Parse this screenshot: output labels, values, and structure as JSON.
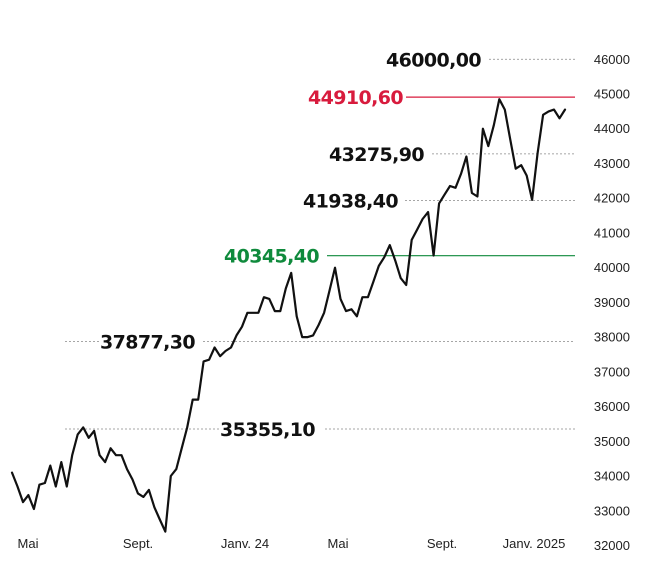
{
  "chart_data": {
    "type": "line",
    "title": "",
    "xlabel": "",
    "ylabel": "",
    "ylim": [
      32000,
      46600
    ],
    "y_axis": {
      "position": "right",
      "ticks": [
        32000,
        33000,
        34000,
        35000,
        36000,
        37000,
        38000,
        39000,
        40000,
        41000,
        42000,
        43000,
        44000,
        45000,
        46000
      ]
    },
    "x_ticks": [
      "Mai",
      "Sept.",
      "Janv. 24",
      "Mai",
      "Sept.",
      "Janv. 2025"
    ],
    "grid": false,
    "series": [
      {
        "color": "#111111",
        "values": [
          34100,
          33700,
          33250,
          33450,
          33050,
          33750,
          33800,
          34300,
          33700,
          34400,
          33700,
          34600,
          35200,
          35400,
          35100,
          35300,
          34600,
          34400,
          34800,
          34600,
          34600,
          34200,
          33900,
          33500,
          33400,
          33600,
          33100,
          32750,
          32400,
          34000,
          34200,
          34800,
          35400,
          36200,
          36200,
          37300,
          37350,
          37700,
          37450,
          37600,
          37700,
          38050,
          38300,
          38700,
          38700,
          38700,
          39150,
          39100,
          38750,
          38750,
          39400,
          39850,
          38600,
          38000,
          38000,
          38050,
          38350,
          38700,
          39350,
          40000,
          39100,
          38750,
          38800,
          38600,
          39150,
          39150,
          39600,
          40050,
          40300,
          40650,
          40200,
          39700,
          39500,
          40800,
          41100,
          41400,
          41600,
          40350,
          41850,
          42100,
          42350,
          42300,
          42700,
          43200,
          42150,
          42050,
          44000,
          43500,
          44100,
          44850,
          44550,
          43700,
          42850,
          42950,
          42650,
          41950,
          43300,
          44400,
          44500,
          44550,
          44300,
          44550
        ]
      }
    ],
    "reference_lines": [
      {
        "value": 46000,
        "label": "46000,00",
        "color": "#111111",
        "style": "dashed"
      },
      {
        "value": 44910.6,
        "label": "44910,60",
        "color": "#d81b3d",
        "style": "solid"
      },
      {
        "value": 43275.9,
        "label": "43275,90",
        "color": "#111111",
        "style": "dashed"
      },
      {
        "value": 41938.4,
        "label": "41938,40",
        "color": "#111111",
        "style": "dashed"
      },
      {
        "value": 40345.4,
        "label": "40345,40",
        "color": "#0f8a3c",
        "style": "solid"
      },
      {
        "value": 37877.3,
        "label": "37877,30",
        "color": "#111111",
        "style": "dashed"
      },
      {
        "value": 35355.1,
        "label": "35355,10",
        "color": "#111111",
        "style": "dashed"
      }
    ]
  }
}
